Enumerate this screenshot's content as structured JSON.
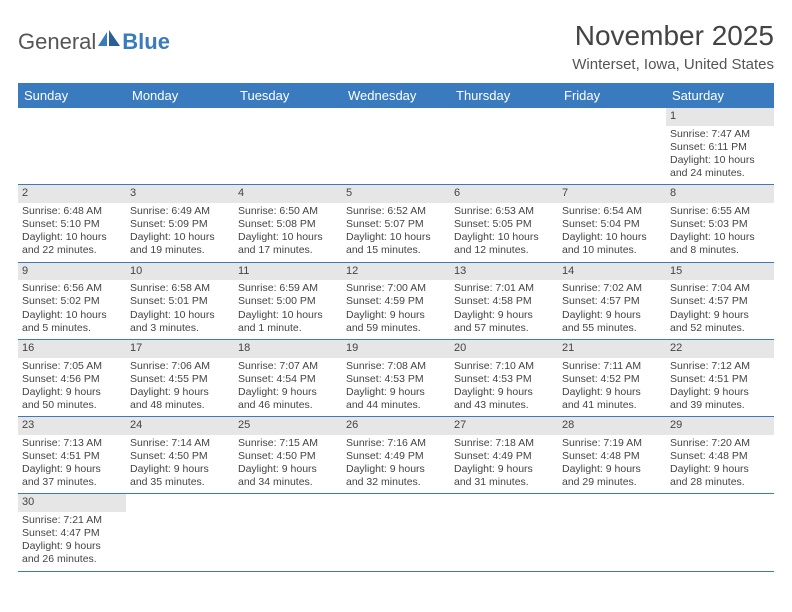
{
  "brand": {
    "part1": "General",
    "part2": "Blue"
  },
  "title": "November 2025",
  "location": "Winterset, Iowa, United States",
  "colors": {
    "header_bg": "#3a7bbf",
    "header_text": "#ffffff",
    "daynum_bg": "#e6e6e6",
    "border": "#3a7bbf",
    "text": "#444444",
    "background": "#ffffff"
  },
  "weekdays": [
    "Sunday",
    "Monday",
    "Tuesday",
    "Wednesday",
    "Thursday",
    "Friday",
    "Saturday"
  ],
  "weeks": [
    [
      null,
      null,
      null,
      null,
      null,
      null,
      {
        "n": "1",
        "sunrise": "Sunrise: 7:47 AM",
        "sunset": "Sunset: 6:11 PM",
        "day1": "Daylight: 10 hours",
        "day2": "and 24 minutes."
      }
    ],
    [
      {
        "n": "2",
        "sunrise": "Sunrise: 6:48 AM",
        "sunset": "Sunset: 5:10 PM",
        "day1": "Daylight: 10 hours",
        "day2": "and 22 minutes."
      },
      {
        "n": "3",
        "sunrise": "Sunrise: 6:49 AM",
        "sunset": "Sunset: 5:09 PM",
        "day1": "Daylight: 10 hours",
        "day2": "and 19 minutes."
      },
      {
        "n": "4",
        "sunrise": "Sunrise: 6:50 AM",
        "sunset": "Sunset: 5:08 PM",
        "day1": "Daylight: 10 hours",
        "day2": "and 17 minutes."
      },
      {
        "n": "5",
        "sunrise": "Sunrise: 6:52 AM",
        "sunset": "Sunset: 5:07 PM",
        "day1": "Daylight: 10 hours",
        "day2": "and 15 minutes."
      },
      {
        "n": "6",
        "sunrise": "Sunrise: 6:53 AM",
        "sunset": "Sunset: 5:05 PM",
        "day1": "Daylight: 10 hours",
        "day2": "and 12 minutes."
      },
      {
        "n": "7",
        "sunrise": "Sunrise: 6:54 AM",
        "sunset": "Sunset: 5:04 PM",
        "day1": "Daylight: 10 hours",
        "day2": "and 10 minutes."
      },
      {
        "n": "8",
        "sunrise": "Sunrise: 6:55 AM",
        "sunset": "Sunset: 5:03 PM",
        "day1": "Daylight: 10 hours",
        "day2": "and 8 minutes."
      }
    ],
    [
      {
        "n": "9",
        "sunrise": "Sunrise: 6:56 AM",
        "sunset": "Sunset: 5:02 PM",
        "day1": "Daylight: 10 hours",
        "day2": "and 5 minutes."
      },
      {
        "n": "10",
        "sunrise": "Sunrise: 6:58 AM",
        "sunset": "Sunset: 5:01 PM",
        "day1": "Daylight: 10 hours",
        "day2": "and 3 minutes."
      },
      {
        "n": "11",
        "sunrise": "Sunrise: 6:59 AM",
        "sunset": "Sunset: 5:00 PM",
        "day1": "Daylight: 10 hours",
        "day2": "and 1 minute."
      },
      {
        "n": "12",
        "sunrise": "Sunrise: 7:00 AM",
        "sunset": "Sunset: 4:59 PM",
        "day1": "Daylight: 9 hours",
        "day2": "and 59 minutes."
      },
      {
        "n": "13",
        "sunrise": "Sunrise: 7:01 AM",
        "sunset": "Sunset: 4:58 PM",
        "day1": "Daylight: 9 hours",
        "day2": "and 57 minutes."
      },
      {
        "n": "14",
        "sunrise": "Sunrise: 7:02 AM",
        "sunset": "Sunset: 4:57 PM",
        "day1": "Daylight: 9 hours",
        "day2": "and 55 minutes."
      },
      {
        "n": "15",
        "sunrise": "Sunrise: 7:04 AM",
        "sunset": "Sunset: 4:57 PM",
        "day1": "Daylight: 9 hours",
        "day2": "and 52 minutes."
      }
    ],
    [
      {
        "n": "16",
        "sunrise": "Sunrise: 7:05 AM",
        "sunset": "Sunset: 4:56 PM",
        "day1": "Daylight: 9 hours",
        "day2": "and 50 minutes."
      },
      {
        "n": "17",
        "sunrise": "Sunrise: 7:06 AM",
        "sunset": "Sunset: 4:55 PM",
        "day1": "Daylight: 9 hours",
        "day2": "and 48 minutes."
      },
      {
        "n": "18",
        "sunrise": "Sunrise: 7:07 AM",
        "sunset": "Sunset: 4:54 PM",
        "day1": "Daylight: 9 hours",
        "day2": "and 46 minutes."
      },
      {
        "n": "19",
        "sunrise": "Sunrise: 7:08 AM",
        "sunset": "Sunset: 4:53 PM",
        "day1": "Daylight: 9 hours",
        "day2": "and 44 minutes."
      },
      {
        "n": "20",
        "sunrise": "Sunrise: 7:10 AM",
        "sunset": "Sunset: 4:53 PM",
        "day1": "Daylight: 9 hours",
        "day2": "and 43 minutes."
      },
      {
        "n": "21",
        "sunrise": "Sunrise: 7:11 AM",
        "sunset": "Sunset: 4:52 PM",
        "day1": "Daylight: 9 hours",
        "day2": "and 41 minutes."
      },
      {
        "n": "22",
        "sunrise": "Sunrise: 7:12 AM",
        "sunset": "Sunset: 4:51 PM",
        "day1": "Daylight: 9 hours",
        "day2": "and 39 minutes."
      }
    ],
    [
      {
        "n": "23",
        "sunrise": "Sunrise: 7:13 AM",
        "sunset": "Sunset: 4:51 PM",
        "day1": "Daylight: 9 hours",
        "day2": "and 37 minutes."
      },
      {
        "n": "24",
        "sunrise": "Sunrise: 7:14 AM",
        "sunset": "Sunset: 4:50 PM",
        "day1": "Daylight: 9 hours",
        "day2": "and 35 minutes."
      },
      {
        "n": "25",
        "sunrise": "Sunrise: 7:15 AM",
        "sunset": "Sunset: 4:50 PM",
        "day1": "Daylight: 9 hours",
        "day2": "and 34 minutes."
      },
      {
        "n": "26",
        "sunrise": "Sunrise: 7:16 AM",
        "sunset": "Sunset: 4:49 PM",
        "day1": "Daylight: 9 hours",
        "day2": "and 32 minutes."
      },
      {
        "n": "27",
        "sunrise": "Sunrise: 7:18 AM",
        "sunset": "Sunset: 4:49 PM",
        "day1": "Daylight: 9 hours",
        "day2": "and 31 minutes."
      },
      {
        "n": "28",
        "sunrise": "Sunrise: 7:19 AM",
        "sunset": "Sunset: 4:48 PM",
        "day1": "Daylight: 9 hours",
        "day2": "and 29 minutes."
      },
      {
        "n": "29",
        "sunrise": "Sunrise: 7:20 AM",
        "sunset": "Sunset: 4:48 PM",
        "day1": "Daylight: 9 hours",
        "day2": "and 28 minutes."
      }
    ],
    [
      {
        "n": "30",
        "sunrise": "Sunrise: 7:21 AM",
        "sunset": "Sunset: 4:47 PM",
        "day1": "Daylight: 9 hours",
        "day2": "and 26 minutes."
      },
      null,
      null,
      null,
      null,
      null,
      null
    ]
  ]
}
